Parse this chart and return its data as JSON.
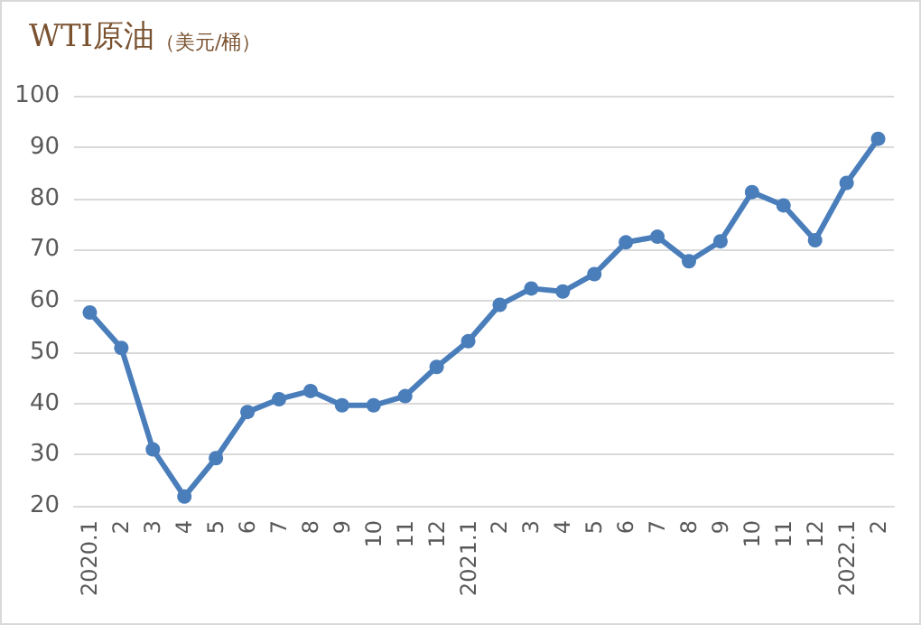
{
  "chart_data": {
    "type": "line",
    "title": "WTI原油",
    "subtitle": "（美元/桶）",
    "categories": [
      "2020.1",
      "2",
      "3",
      "4",
      "5",
      "6",
      "7",
      "8",
      "9",
      "10",
      "11",
      "12",
      "2021.1",
      "2",
      "3",
      "4",
      "5",
      "6",
      "7",
      "8",
      "9",
      "10",
      "11",
      "12",
      "2022.1",
      "2"
    ],
    "series": [
      {
        "color": "#4a7ebb",
        "values": [
          57.7,
          50.8,
          31,
          21.8,
          29.3,
          38.3,
          40.8,
          42.4,
          39.6,
          39.6,
          41.4,
          47.1,
          52.1,
          59.2,
          62.4,
          61.8,
          65.2,
          71.4,
          72.5,
          67.7,
          71.6,
          81.2,
          78.6,
          71.8,
          83.0,
          91.6
        ]
      }
    ],
    "ylim": [
      20,
      100
    ],
    "yticks": [
      20,
      30,
      40,
      50,
      60,
      70,
      80,
      90,
      100
    ],
    "grid": "y",
    "marker": "circle",
    "line_style": "solid"
  }
}
